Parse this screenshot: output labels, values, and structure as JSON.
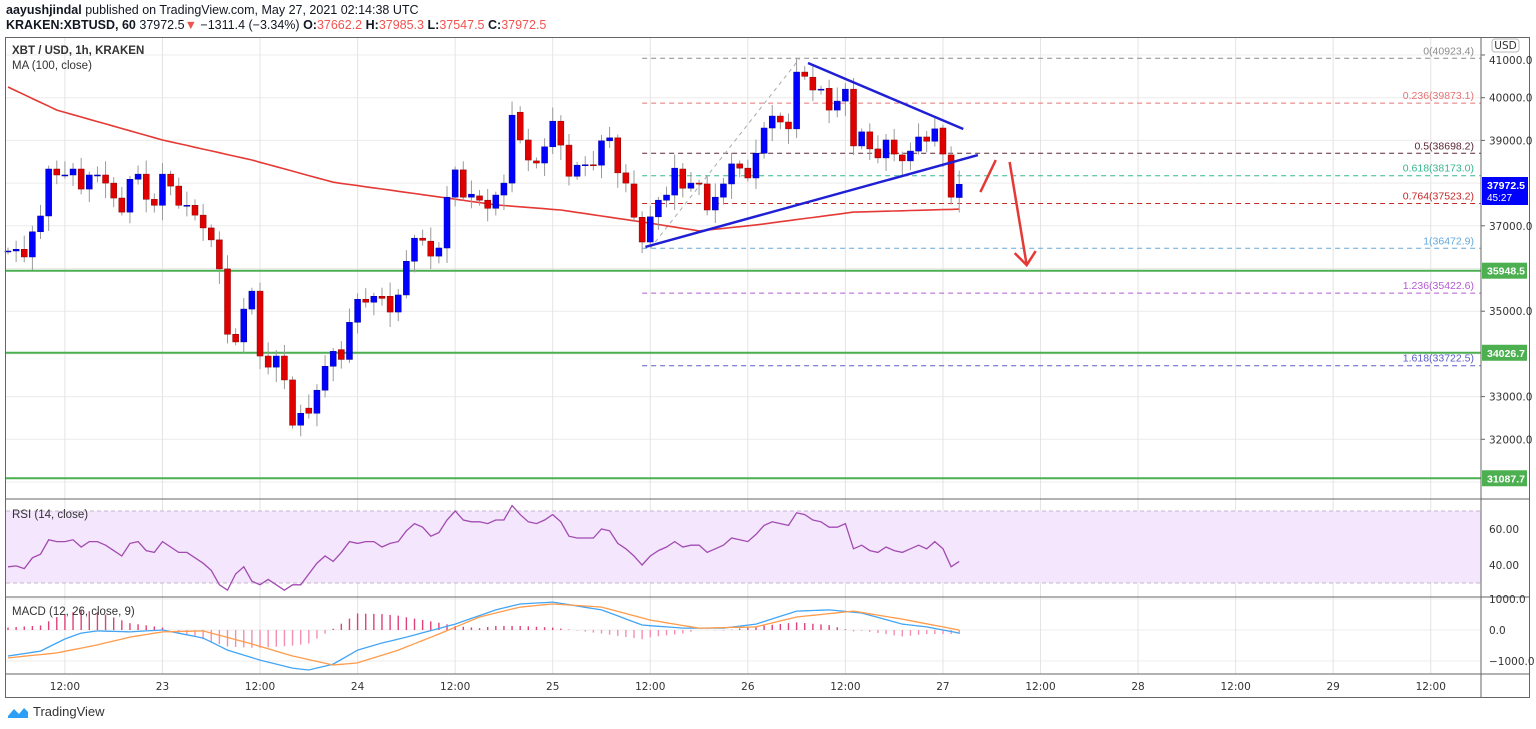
{
  "header": {
    "author": "aayushjindal",
    "published_text": " published on TradingView.com, May 27, 2021 02:14:38 UTC",
    "symbol": "KRAKEN:XBTUSD, 60",
    "last": "37972.5",
    "change": "−1311.4 (−3.34%)",
    "o_label": "O:",
    "o": "37662.2",
    "h_label": "H:",
    "h": "37985.3",
    "l_label": "L:",
    "l": "37547.5",
    "c_label": "C:",
    "c": "37972.5"
  },
  "legend": {
    "main": "XBT / USD, 1h, KRAKEN",
    "ma": "MA (100, close)",
    "rsi": "RSI (14, close)",
    "macd": "MACD (12, 26, close, 9)"
  },
  "currency_badge": "USD",
  "price_label": {
    "value": "37972.5",
    "countdown": "45:27"
  },
  "logo_text": "TradingView",
  "colors": {
    "up": "#0000ff",
    "down": "#e00000",
    "ma": "#e53935",
    "support": "#4caf50",
    "trendline": "#1f1fd6",
    "arrow": "#e53935",
    "rsi": "#a24bb0",
    "macd": "#42a5f5",
    "signal": "#ff9b4a"
  },
  "chart_data": {
    "type": "candlestick",
    "title": "XBT / USD, 1h, KRAKEN",
    "price_ticks": [
      41000,
      40000,
      39000,
      37000,
      35000,
      33000,
      32000
    ],
    "price_tick_labels": [
      "41000.0",
      "40000.0",
      "39000.0",
      "37000.0",
      "35000.0",
      "33000.0",
      "32000.0"
    ],
    "time_ticks": [
      {
        "index": 7,
        "label": "12:00"
      },
      {
        "index": 19,
        "label": "23"
      },
      {
        "index": 31,
        "label": "12:00"
      },
      {
        "index": 43,
        "label": "24"
      },
      {
        "index": 55,
        "label": "12:00"
      },
      {
        "index": 67,
        "label": "25"
      },
      {
        "index": 79,
        "label": "12:00"
      },
      {
        "index": 91,
        "label": "26"
      },
      {
        "index": 103,
        "label": "12:00"
      },
      {
        "index": 115,
        "label": "27"
      },
      {
        "index": 127,
        "label": "12:00"
      },
      {
        "index": 139,
        "label": "28"
      },
      {
        "index": 151,
        "label": "12:00"
      },
      {
        "index": 163,
        "label": "29"
      },
      {
        "index": 175,
        "label": "12:00"
      }
    ],
    "candles_oc": [
      [
        36410,
        36410
      ],
      [
        36410,
        36450
      ],
      [
        36450,
        36270
      ],
      [
        36270,
        36860
      ],
      [
        36860,
        37230
      ],
      [
        37230,
        38330
      ],
      [
        38330,
        38190
      ],
      [
        38190,
        38190
      ],
      [
        38190,
        38330
      ],
      [
        38330,
        37860
      ],
      [
        37860,
        38190
      ],
      [
        38190,
        38190
      ],
      [
        38190,
        38000
      ],
      [
        38000,
        37650
      ],
      [
        37650,
        37320
      ],
      [
        37320,
        38090
      ],
      [
        38090,
        38210
      ],
      [
        38210,
        37620
      ],
      [
        37620,
        37480
      ],
      [
        37480,
        38210
      ],
      [
        38210,
        37930
      ],
      [
        37930,
        37480
      ],
      [
        37480,
        37480
      ],
      [
        37480,
        37250
      ],
      [
        37250,
        36950
      ],
      [
        36950,
        36670
      ],
      [
        36670,
        35990
      ],
      [
        35990,
        34460
      ],
      [
        34460,
        34280
      ],
      [
        34280,
        35050
      ],
      [
        35050,
        35470
      ],
      [
        35470,
        33950
      ],
      [
        33950,
        33690
      ],
      [
        33690,
        33950
      ],
      [
        33950,
        33390
      ],
      [
        33390,
        32330
      ],
      [
        32330,
        32610
      ],
      [
        32730,
        32610
      ],
      [
        32610,
        33150
      ],
      [
        33150,
        33710
      ],
      [
        33710,
        34060
      ],
      [
        34100,
        33870
      ],
      [
        33870,
        34740
      ],
      [
        34740,
        35280
      ],
      [
        35280,
        35210
      ],
      [
        35210,
        35350
      ],
      [
        35350,
        35300
      ],
      [
        35350,
        34980
      ],
      [
        34980,
        35380
      ],
      [
        35380,
        36170
      ],
      [
        36170,
        36710
      ],
      [
        36710,
        36660
      ],
      [
        36640,
        36290
      ],
      [
        36290,
        36480
      ],
      [
        36480,
        37670
      ],
      [
        37670,
        38310
      ],
      [
        38310,
        37670
      ],
      [
        37670,
        37740
      ],
      [
        37700,
        37600
      ],
      [
        37600,
        37410
      ],
      [
        37410,
        37720
      ],
      [
        37720,
        38000
      ],
      [
        38000,
        39590
      ],
      [
        39660,
        39010
      ],
      [
        39010,
        38540
      ],
      [
        38520,
        38470
      ],
      [
        38470,
        38850
      ],
      [
        38850,
        39450
      ],
      [
        39450,
        38890
      ],
      [
        38890,
        38160
      ],
      [
        38160,
        38420
      ],
      [
        38420,
        38430
      ],
      [
        38430,
        38420
      ],
      [
        38420,
        38990
      ],
      [
        38990,
        39060
      ],
      [
        39060,
        38240
      ],
      [
        38240,
        38000
      ],
      [
        37980,
        37200
      ],
      [
        37200,
        36620
      ],
      [
        36620,
        37210
      ],
      [
        37210,
        37600
      ],
      [
        37600,
        37720
      ],
      [
        37720,
        38350
      ],
      [
        38330,
        37880
      ],
      [
        37880,
        38000
      ],
      [
        38000,
        37980
      ],
      [
        37980,
        37370
      ],
      [
        37370,
        37670
      ],
      [
        37670,
        37980
      ],
      [
        37980,
        38450
      ],
      [
        38450,
        38350
      ],
      [
        38350,
        38120
      ],
      [
        38120,
        38700
      ],
      [
        38700,
        39290
      ],
      [
        39290,
        39570
      ],
      [
        39570,
        39430
      ],
      [
        39430,
        39270
      ],
      [
        39270,
        40600
      ],
      [
        40600,
        40500
      ],
      [
        40480,
        40180
      ],
      [
        40200,
        40200
      ],
      [
        40220,
        39710
      ],
      [
        39710,
        39920
      ],
      [
        39920,
        40200
      ],
      [
        40200,
        38870
      ],
      [
        38870,
        39200
      ],
      [
        39200,
        38800
      ],
      [
        38800,
        38590
      ],
      [
        38590,
        39010
      ],
      [
        39010,
        38680
      ],
      [
        38660,
        38520
      ],
      [
        38520,
        38750
      ],
      [
        38750,
        39080
      ],
      [
        39080,
        38980
      ],
      [
        38980,
        39270
      ],
      [
        39290,
        38680
      ],
      [
        38660,
        37670
      ],
      [
        37662.2,
        37972.5
      ]
    ],
    "ma100": [
      [
        0,
        40250
      ],
      [
        6,
        39710
      ],
      [
        19,
        39010
      ],
      [
        30,
        38540
      ],
      [
        40,
        38020
      ],
      [
        54,
        37650
      ],
      [
        60,
        37490
      ],
      [
        68,
        37370
      ],
      [
        78,
        37090
      ],
      [
        85,
        36880
      ],
      [
        92,
        37020
      ],
      [
        104,
        37320
      ],
      [
        117,
        37390
      ]
    ],
    "fib_levels": [
      {
        "ratio": "0",
        "price": "40923.4",
        "color": "#8c8c8c"
      },
      {
        "ratio": "0.236",
        "price": "39873.1",
        "color": "#e57373"
      },
      {
        "ratio": "0.5",
        "price": "38698.2",
        "color": "#5a2634"
      },
      {
        "ratio": "0.618",
        "price": "38173.0",
        "color": "#35b58f"
      },
      {
        "ratio": "0.764",
        "price": "37523.2",
        "color": "#c62828"
      },
      {
        "ratio": "1",
        "price": "36472.9",
        "color": "#64a9dc"
      },
      {
        "ratio": "1.236",
        "price": "35422.6",
        "color": "#b25bd0"
      },
      {
        "ratio": "1.618",
        "price": "33722.5",
        "color": "#5b5bc8"
      }
    ],
    "fib_start_index": 78,
    "fib_anchor": [
      [
        79,
        36472.9
      ],
      [
        97.4,
        40923.4
      ]
    ],
    "support_levels": [
      "35948.5",
      "34026.7",
      "31087.7"
    ],
    "trendlines": [
      [
        [
          78.4,
          36504
        ],
        [
          119.3,
          38656
        ]
      ],
      [
        [
          98.4,
          40813
        ],
        [
          117.5,
          39267
        ]
      ]
    ],
    "arrows": [
      {
        "from": [
          119.6,
          37790
        ],
        "to": [
          121.5,
          38540
        ],
        "head": false
      },
      {
        "from": [
          123.2,
          38494
        ],
        "to": [
          125.3,
          36080
        ],
        "head": true
      }
    ],
    "rsi": {
      "band": [
        30,
        70
      ],
      "ticks": [
        "60.00",
        "40.00"
      ],
      "values": [
        39,
        39.5,
        38,
        44,
        46,
        54,
        53,
        53,
        54,
        50,
        53,
        53,
        51,
        48,
        45,
        52,
        53,
        48,
        47,
        53,
        50,
        47,
        47,
        44,
        41,
        37,
        29,
        26,
        35,
        39,
        31,
        29,
        32,
        29,
        26,
        29,
        29,
        35,
        41,
        45,
        42,
        47,
        53,
        52,
        53,
        53,
        50,
        52,
        53,
        59,
        63,
        61,
        56,
        58,
        65,
        70,
        65,
        64,
        64,
        63,
        65,
        65,
        73,
        68,
        64,
        63,
        65,
        68,
        64,
        56,
        55,
        55,
        55,
        60,
        59,
        52,
        49,
        45,
        40,
        45,
        48,
        50,
        53,
        50,
        51,
        51,
        47,
        49,
        51,
        55,
        54,
        53,
        57,
        62,
        64,
        63,
        62,
        69,
        68,
        65,
        64,
        61,
        61,
        63,
        49,
        51,
        48,
        47,
        50,
        48,
        47,
        49,
        51,
        49,
        53,
        49,
        39,
        42
      ]
    },
    "macd": {
      "ticks": [
        "1000.0",
        "0.0",
        "−1000.0"
      ],
      "macd_line": [
        [
          0,
          -840
        ],
        [
          4,
          -680
        ],
        [
          7,
          -290
        ],
        [
          9,
          -100
        ],
        [
          11,
          -30
        ],
        [
          15,
          -60
        ],
        [
          19,
          0
        ],
        [
          24,
          -260
        ],
        [
          27,
          -650
        ],
        [
          31,
          -970
        ],
        [
          35,
          -1230
        ],
        [
          37,
          -1290
        ],
        [
          40,
          -1100
        ],
        [
          43,
          -650
        ],
        [
          46,
          -420
        ],
        [
          49,
          -230
        ],
        [
          55,
          190
        ],
        [
          60,
          650
        ],
        [
          63,
          840
        ],
        [
          67,
          900
        ],
        [
          73,
          650
        ],
        [
          78,
          160
        ],
        [
          83,
          60
        ],
        [
          88,
          60
        ],
        [
          92,
          190
        ],
        [
          97,
          610
        ],
        [
          101,
          650
        ],
        [
          105,
          550
        ],
        [
          110,
          190
        ],
        [
          113,
          100
        ],
        [
          117,
          -100
        ]
      ],
      "signal_line": [
        [
          0,
          -900
        ],
        [
          6,
          -740
        ],
        [
          11,
          -480
        ],
        [
          15,
          -230
        ],
        [
          19,
          -60
        ],
        [
          24,
          -30
        ],
        [
          30,
          -450
        ],
        [
          35,
          -840
        ],
        [
          40,
          -1130
        ],
        [
          43,
          -1060
        ],
        [
          48,
          -650
        ],
        [
          53,
          -130
        ],
        [
          58,
          420
        ],
        [
          63,
          740
        ],
        [
          67,
          840
        ],
        [
          73,
          740
        ],
        [
          79,
          320
        ],
        [
          85,
          60
        ],
        [
          92,
          100
        ],
        [
          97,
          420
        ],
        [
          104,
          610
        ],
        [
          110,
          350
        ],
        [
          117,
          0
        ]
      ]
    }
  }
}
